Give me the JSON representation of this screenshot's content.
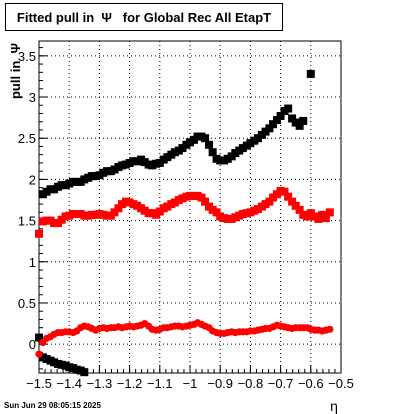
{
  "title": "Fitted pull in  Ψ   for Global Rec All EtapT",
  "datestamp": "Sun Jun 29 08:05:15 2025",
  "chart_data": {
    "type": "scatter",
    "title": "Fitted pull in  Ψ   for Global Rec All EtapT",
    "xlabel": "η",
    "ylabel": "pull in  Ψ",
    "xlim": [
      -1.5,
      -0.5
    ],
    "ylim": [
      -0.35,
      3.68
    ],
    "grid": true,
    "x_ticks": [
      -1.5,
      -1.4,
      -1.3,
      -1.2,
      -1.1,
      -1,
      -0.9,
      -0.8,
      -0.7,
      -0.6,
      -0.5
    ],
    "x_tick_labels": [
      "−1.5",
      "−1.4",
      "−1.3",
      "−1.2",
      "−1.1",
      "−1",
      "−0.9",
      "−0.8",
      "−0.7",
      "−0.6",
      "−0.5"
    ],
    "y_ticks": [
      0,
      0.5,
      1,
      1.5,
      2,
      2.5,
      3,
      3.5
    ],
    "y_tick_labels": [
      "0",
      "0.5",
      "1",
      "1.5",
      "2",
      "2.5",
      "3",
      "3.5"
    ],
    "series": [
      {
        "color": "#000000",
        "marker": "square",
        "points": [
          [
            -1.487,
            1.82
          ],
          [
            -1.475,
            1.85
          ],
          [
            -1.462,
            1.88
          ],
          [
            -1.45,
            1.88
          ],
          [
            -1.437,
            1.91
          ],
          [
            -1.425,
            1.93
          ],
          [
            -1.412,
            1.93
          ],
          [
            -1.4,
            1.95
          ],
          [
            -1.387,
            1.97
          ],
          [
            -1.375,
            1.97
          ],
          [
            -1.362,
            1.97
          ],
          [
            -1.35,
            2.0
          ],
          [
            -1.337,
            2.02
          ],
          [
            -1.325,
            2.04
          ],
          [
            -1.312,
            2.04
          ],
          [
            -1.3,
            2.05
          ],
          [
            -1.287,
            2.08
          ],
          [
            -1.275,
            2.1
          ],
          [
            -1.262,
            2.1
          ],
          [
            -1.25,
            2.12
          ],
          [
            -1.237,
            2.15
          ],
          [
            -1.225,
            2.17
          ],
          [
            -1.212,
            2.18
          ],
          [
            -1.2,
            2.2
          ],
          [
            -1.187,
            2.22
          ],
          [
            -1.175,
            2.22
          ],
          [
            -1.162,
            2.24
          ],
          [
            -1.15,
            2.21
          ],
          [
            -1.137,
            2.18
          ],
          [
            -1.125,
            2.17
          ],
          [
            -1.112,
            2.19
          ],
          [
            -1.1,
            2.2
          ],
          [
            -1.087,
            2.24
          ],
          [
            -1.075,
            2.27
          ],
          [
            -1.062,
            2.3
          ],
          [
            -1.05,
            2.33
          ],
          [
            -1.037,
            2.35
          ],
          [
            -1.025,
            2.38
          ],
          [
            -1.012,
            2.42
          ],
          [
            -1.0,
            2.45
          ],
          [
            -0.987,
            2.48
          ],
          [
            -0.975,
            2.52
          ],
          [
            -0.962,
            2.52
          ],
          [
            -0.95,
            2.5
          ],
          [
            -0.937,
            2.42
          ],
          [
            -0.925,
            2.33
          ],
          [
            -0.912,
            2.25
          ],
          [
            -0.9,
            2.23
          ],
          [
            -0.887,
            2.23
          ],
          [
            -0.875,
            2.25
          ],
          [
            -0.862,
            2.28
          ],
          [
            -0.85,
            2.32
          ],
          [
            -0.837,
            2.35
          ],
          [
            -0.825,
            2.38
          ],
          [
            -0.812,
            2.41
          ],
          [
            -0.8,
            2.44
          ],
          [
            -0.787,
            2.47
          ],
          [
            -0.775,
            2.5
          ],
          [
            -0.762,
            2.54
          ],
          [
            -0.75,
            2.58
          ],
          [
            -0.737,
            2.62
          ],
          [
            -0.725,
            2.67
          ],
          [
            -0.712,
            2.72
          ],
          [
            -0.7,
            2.77
          ],
          [
            -0.687,
            2.83
          ],
          [
            -0.675,
            2.86
          ],
          [
            -0.662,
            2.74
          ],
          [
            -0.65,
            2.69
          ],
          [
            -0.637,
            2.65
          ],
          [
            -0.625,
            2.71
          ],
          [
            -0.6,
            3.28
          ]
        ]
      },
      {
        "color": "#000000",
        "marker": "square",
        "points": [
          [
            -1.5,
            0.08
          ],
          [
            -1.487,
            -0.16
          ],
          [
            -1.475,
            -0.18
          ],
          [
            -1.462,
            -0.2
          ],
          [
            -1.45,
            -0.22
          ],
          [
            -1.437,
            -0.24
          ],
          [
            -1.425,
            -0.25
          ],
          [
            -1.412,
            -0.26
          ],
          [
            -1.4,
            -0.28
          ],
          [
            -1.387,
            -0.29
          ],
          [
            -1.375,
            -0.31
          ],
          [
            -1.362,
            -0.32
          ],
          [
            -1.35,
            -0.34
          ]
        ]
      },
      {
        "color": "#ff0000",
        "marker": "square",
        "points": [
          [
            -1.5,
            1.34
          ],
          [
            -1.487,
            1.49
          ],
          [
            -1.475,
            1.5
          ],
          [
            -1.462,
            1.5
          ],
          [
            -1.45,
            1.47
          ],
          [
            -1.437,
            1.47
          ],
          [
            -1.425,
            1.51
          ],
          [
            -1.412,
            1.55
          ],
          [
            -1.4,
            1.56
          ],
          [
            -1.387,
            1.58
          ],
          [
            -1.375,
            1.58
          ],
          [
            -1.362,
            1.58
          ],
          [
            -1.35,
            1.56
          ],
          [
            -1.337,
            1.56
          ],
          [
            -1.325,
            1.57
          ],
          [
            -1.312,
            1.57
          ],
          [
            -1.3,
            1.58
          ],
          [
            -1.287,
            1.57
          ],
          [
            -1.275,
            1.56
          ],
          [
            -1.262,
            1.56
          ],
          [
            -1.25,
            1.6
          ],
          [
            -1.237,
            1.65
          ],
          [
            -1.225,
            1.7
          ],
          [
            -1.212,
            1.73
          ],
          [
            -1.2,
            1.72
          ],
          [
            -1.187,
            1.7
          ],
          [
            -1.175,
            1.68
          ],
          [
            -1.162,
            1.65
          ],
          [
            -1.15,
            1.62
          ],
          [
            -1.137,
            1.59
          ],
          [
            -1.125,
            1.59
          ],
          [
            -1.112,
            1.57
          ],
          [
            -1.1,
            1.61
          ],
          [
            -1.087,
            1.65
          ],
          [
            -1.075,
            1.67
          ],
          [
            -1.062,
            1.7
          ],
          [
            -1.05,
            1.72
          ],
          [
            -1.037,
            1.75
          ],
          [
            -1.025,
            1.77
          ],
          [
            -1.012,
            1.79
          ],
          [
            -1.0,
            1.8
          ],
          [
            -0.987,
            1.8
          ],
          [
            -0.975,
            1.8
          ],
          [
            -0.962,
            1.78
          ],
          [
            -0.95,
            1.73
          ],
          [
            -0.937,
            1.67
          ],
          [
            -0.925,
            1.63
          ],
          [
            -0.912,
            1.6
          ],
          [
            -0.9,
            1.55
          ],
          [
            -0.887,
            1.53
          ],
          [
            -0.875,
            1.52
          ],
          [
            -0.862,
            1.52
          ],
          [
            -0.85,
            1.54
          ],
          [
            -0.837,
            1.56
          ],
          [
            -0.825,
            1.58
          ],
          [
            -0.812,
            1.59
          ],
          [
            -0.8,
            1.6
          ],
          [
            -0.787,
            1.62
          ],
          [
            -0.775,
            1.64
          ],
          [
            -0.762,
            1.67
          ],
          [
            -0.75,
            1.7
          ],
          [
            -0.737,
            1.73
          ],
          [
            -0.725,
            1.78
          ],
          [
            -0.712,
            1.82
          ],
          [
            -0.7,
            1.86
          ],
          [
            -0.687,
            1.85
          ],
          [
            -0.675,
            1.79
          ],
          [
            -0.662,
            1.73
          ],
          [
            -0.65,
            1.68
          ],
          [
            -0.637,
            1.63
          ],
          [
            -0.625,
            1.57
          ],
          [
            -0.612,
            1.55
          ],
          [
            -0.6,
            1.59
          ],
          [
            -0.587,
            1.55
          ],
          [
            -0.575,
            1.52
          ],
          [
            -0.562,
            1.57
          ],
          [
            -0.55,
            1.53
          ],
          [
            -0.537,
            1.6
          ]
        ]
      },
      {
        "color": "#ff0000",
        "marker": "circle",
        "points": [
          [
            -1.5,
            -0.12
          ],
          [
            -1.487,
            0.02
          ],
          [
            -1.475,
            0.07
          ],
          [
            -1.462,
            0.09
          ],
          [
            -1.45,
            0.12
          ],
          [
            -1.437,
            0.14
          ],
          [
            -1.425,
            0.14
          ],
          [
            -1.412,
            0.15
          ],
          [
            -1.4,
            0.15
          ],
          [
            -1.387,
            0.14
          ],
          [
            -1.375,
            0.16
          ],
          [
            -1.362,
            0.2
          ],
          [
            -1.35,
            0.22
          ],
          [
            -1.337,
            0.21
          ],
          [
            -1.325,
            0.19
          ],
          [
            -1.312,
            0.17
          ],
          [
            -1.3,
            0.19
          ],
          [
            -1.287,
            0.2
          ],
          [
            -1.275,
            0.19
          ],
          [
            -1.262,
            0.2
          ],
          [
            -1.25,
            0.2
          ],
          [
            -1.237,
            0.21
          ],
          [
            -1.225,
            0.2
          ],
          [
            -1.212,
            0.21
          ],
          [
            -1.2,
            0.22
          ],
          [
            -1.187,
            0.21
          ],
          [
            -1.175,
            0.22
          ],
          [
            -1.162,
            0.23
          ],
          [
            -1.15,
            0.25
          ],
          [
            -1.137,
            0.22
          ],
          [
            -1.125,
            0.18
          ],
          [
            -1.112,
            0.17
          ],
          [
            -1.1,
            0.18
          ],
          [
            -1.087,
            0.2
          ],
          [
            -1.075,
            0.2
          ],
          [
            -1.062,
            0.21
          ],
          [
            -1.05,
            0.22
          ],
          [
            -1.037,
            0.22
          ],
          [
            -1.025,
            0.21
          ],
          [
            -1.012,
            0.22
          ],
          [
            -1.0,
            0.23
          ],
          [
            -0.987,
            0.24
          ],
          [
            -0.975,
            0.26
          ],
          [
            -0.962,
            0.24
          ],
          [
            -0.95,
            0.22
          ],
          [
            -0.937,
            0.2
          ],
          [
            -0.925,
            0.16
          ],
          [
            -0.912,
            0.14
          ],
          [
            -0.9,
            0.13
          ],
          [
            -0.887,
            0.13
          ],
          [
            -0.875,
            0.14
          ],
          [
            -0.862,
            0.15
          ],
          [
            -0.85,
            0.14
          ],
          [
            -0.837,
            0.15
          ],
          [
            -0.825,
            0.15
          ],
          [
            -0.812,
            0.15
          ],
          [
            -0.8,
            0.16
          ],
          [
            -0.787,
            0.16
          ],
          [
            -0.775,
            0.17
          ],
          [
            -0.762,
            0.18
          ],
          [
            -0.75,
            0.19
          ],
          [
            -0.737,
            0.19
          ],
          [
            -0.725,
            0.21
          ],
          [
            -0.712,
            0.23
          ],
          [
            -0.7,
            0.22
          ],
          [
            -0.687,
            0.21
          ],
          [
            -0.675,
            0.2
          ],
          [
            -0.662,
            0.19
          ],
          [
            -0.65,
            0.2
          ],
          [
            -0.637,
            0.2
          ],
          [
            -0.625,
            0.2
          ],
          [
            -0.612,
            0.2
          ],
          [
            -0.6,
            0.18
          ],
          [
            -0.587,
            0.17
          ],
          [
            -0.575,
            0.17
          ],
          [
            -0.562,
            0.16
          ],
          [
            -0.55,
            0.17
          ],
          [
            -0.537,
            0.18
          ]
        ]
      }
    ]
  }
}
